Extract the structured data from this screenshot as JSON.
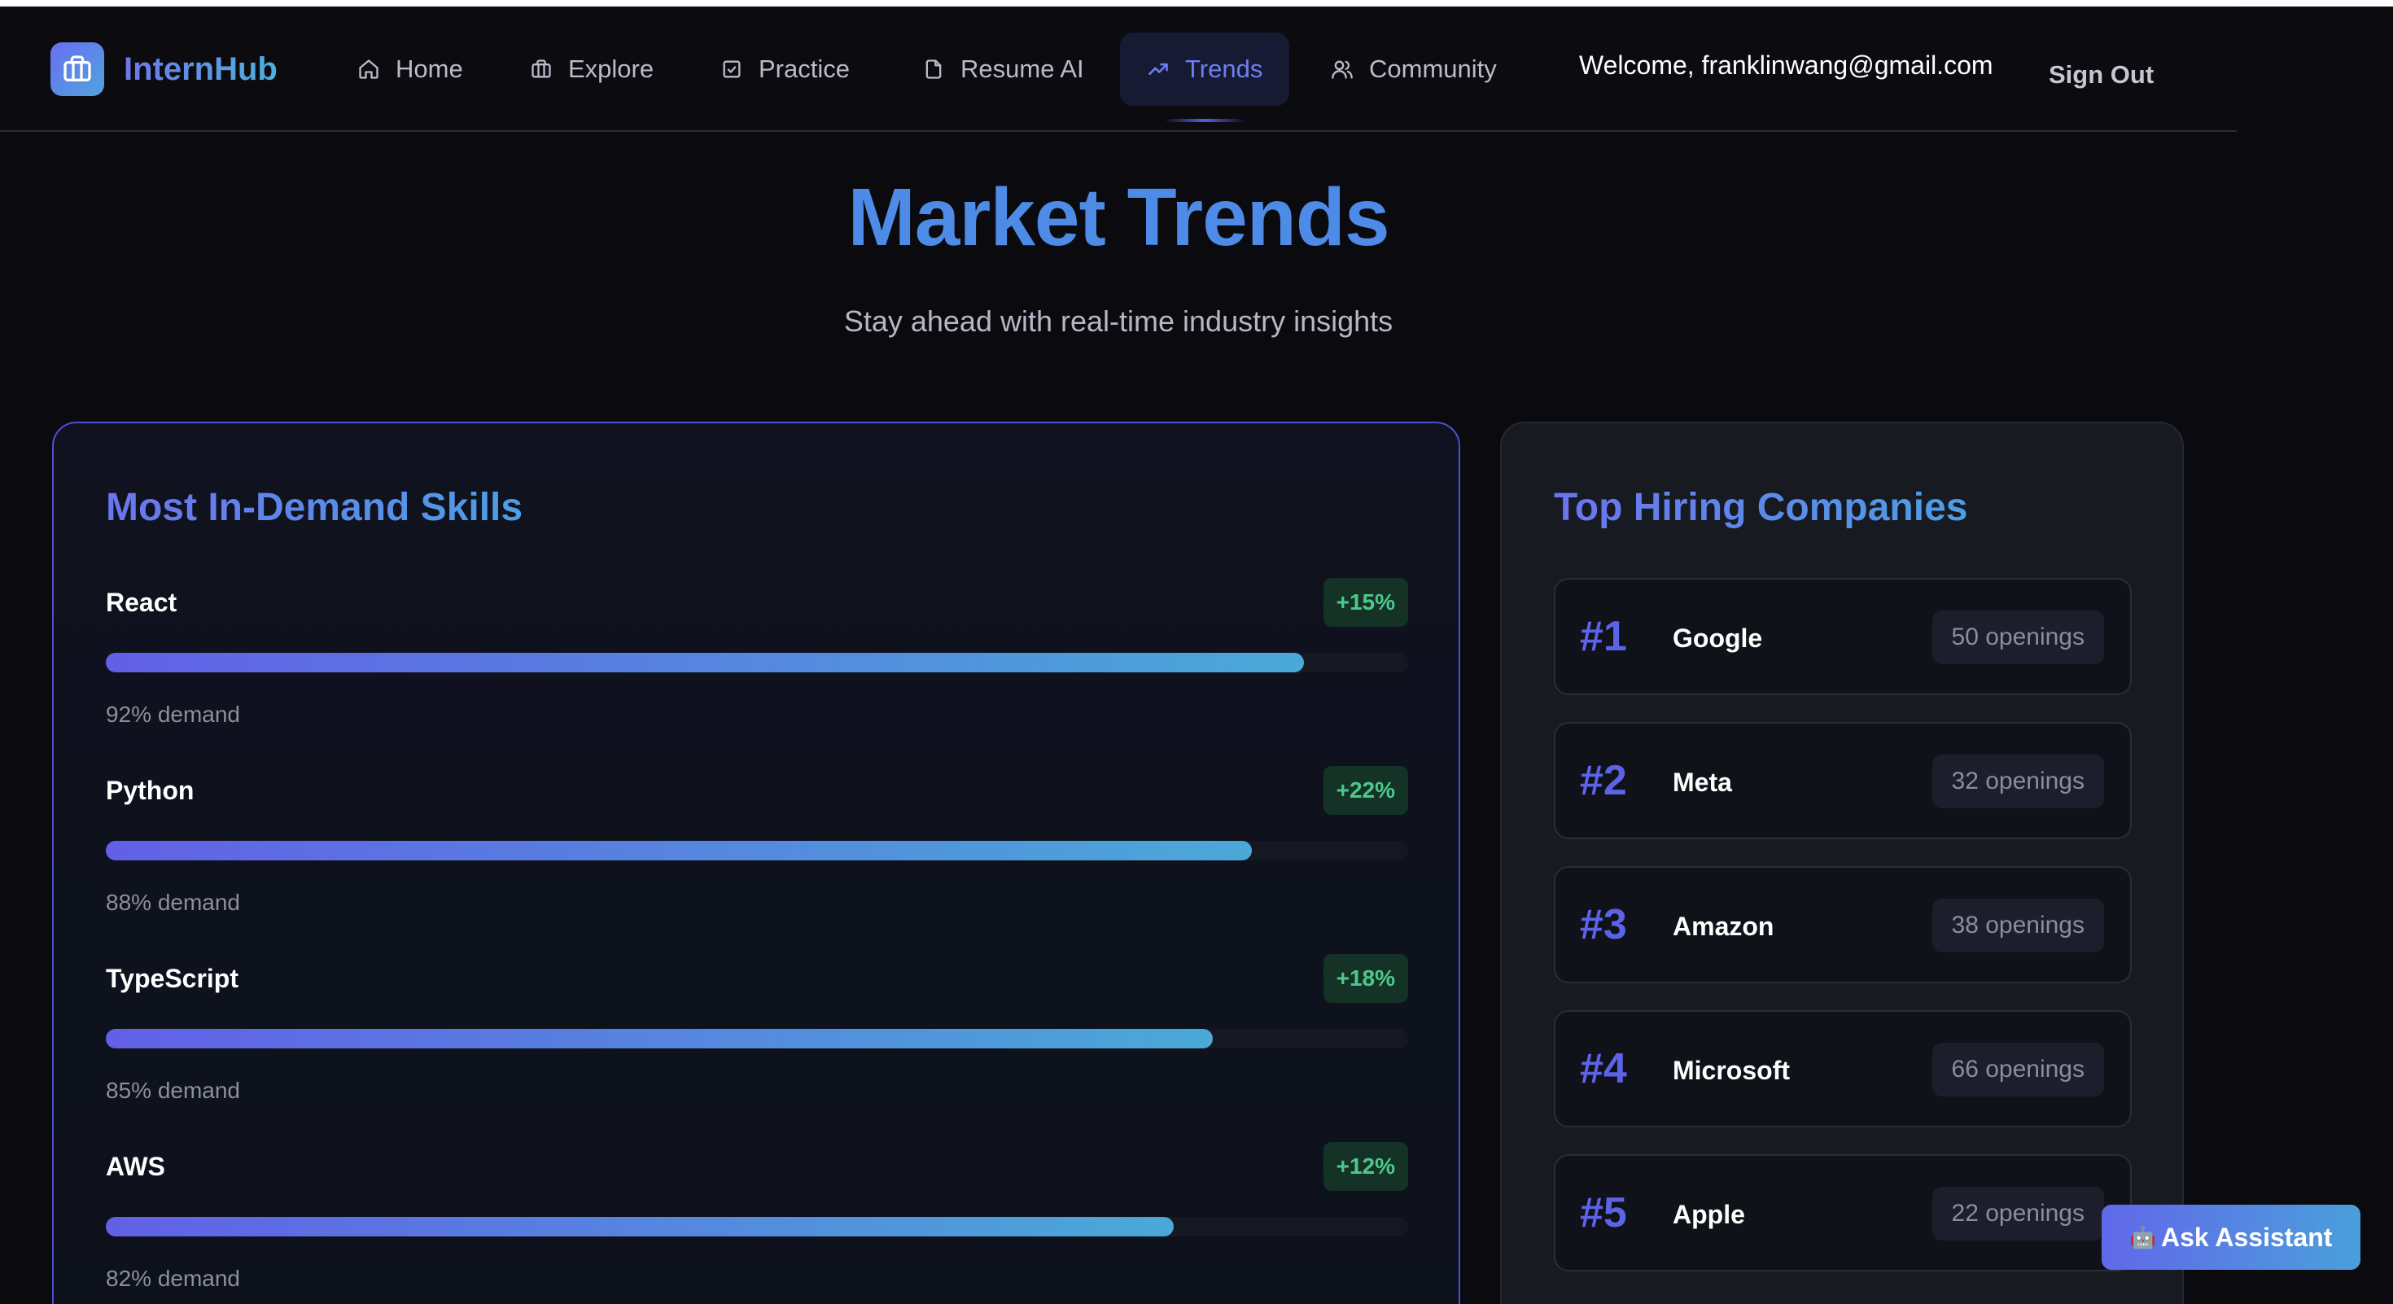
{
  "app": {
    "name": "InternHub"
  },
  "nav": [
    {
      "label": "Home",
      "icon": "home-icon"
    },
    {
      "label": "Explore",
      "icon": "briefcase-icon"
    },
    {
      "label": "Practice",
      "icon": "checkbox-icon"
    },
    {
      "label": "Resume AI",
      "icon": "document-icon"
    },
    {
      "label": "Trends",
      "icon": "trending-up-icon",
      "active": true
    },
    {
      "label": "Community",
      "icon": "users-icon"
    }
  ],
  "user": {
    "welcome": "Welcome, franklinwang@gmail.com",
    "signout_label": "Sign Out"
  },
  "page": {
    "title": "Market Trends",
    "subtitle": "Stay ahead with real-time industry insights"
  },
  "skills_panel": {
    "title": "Most In-Demand Skills",
    "skills": [
      {
        "name": "React",
        "growth": "+15%",
        "demand_label": "92% demand",
        "demand": 92
      },
      {
        "name": "Python",
        "growth": "+22%",
        "demand_label": "88% demand",
        "demand": 88
      },
      {
        "name": "TypeScript",
        "growth": "+18%",
        "demand_label": "85% demand",
        "demand": 85
      },
      {
        "name": "AWS",
        "growth": "+12%",
        "demand_label": "82% demand",
        "demand": 82
      }
    ]
  },
  "companies_panel": {
    "title": "Top Hiring Companies",
    "companies": [
      {
        "rank": "#1",
        "name": "Google",
        "openings": "50 openings"
      },
      {
        "rank": "#2",
        "name": "Meta",
        "openings": "32 openings"
      },
      {
        "rank": "#3",
        "name": "Amazon",
        "openings": "38 openings"
      },
      {
        "rank": "#4",
        "name": "Microsoft",
        "openings": "66 openings"
      },
      {
        "rank": "#5",
        "name": "Apple",
        "openings": "22 openings"
      }
    ]
  },
  "assistant": {
    "label": "Ask Assistant",
    "icon": "robot-icon"
  },
  "colors": {
    "background": "#0a0a0f",
    "accent": "#4e8be6",
    "active_nav": "#6d7ef2",
    "growth_green": "#4cc98a",
    "rank_purple": "#5c63e6"
  }
}
